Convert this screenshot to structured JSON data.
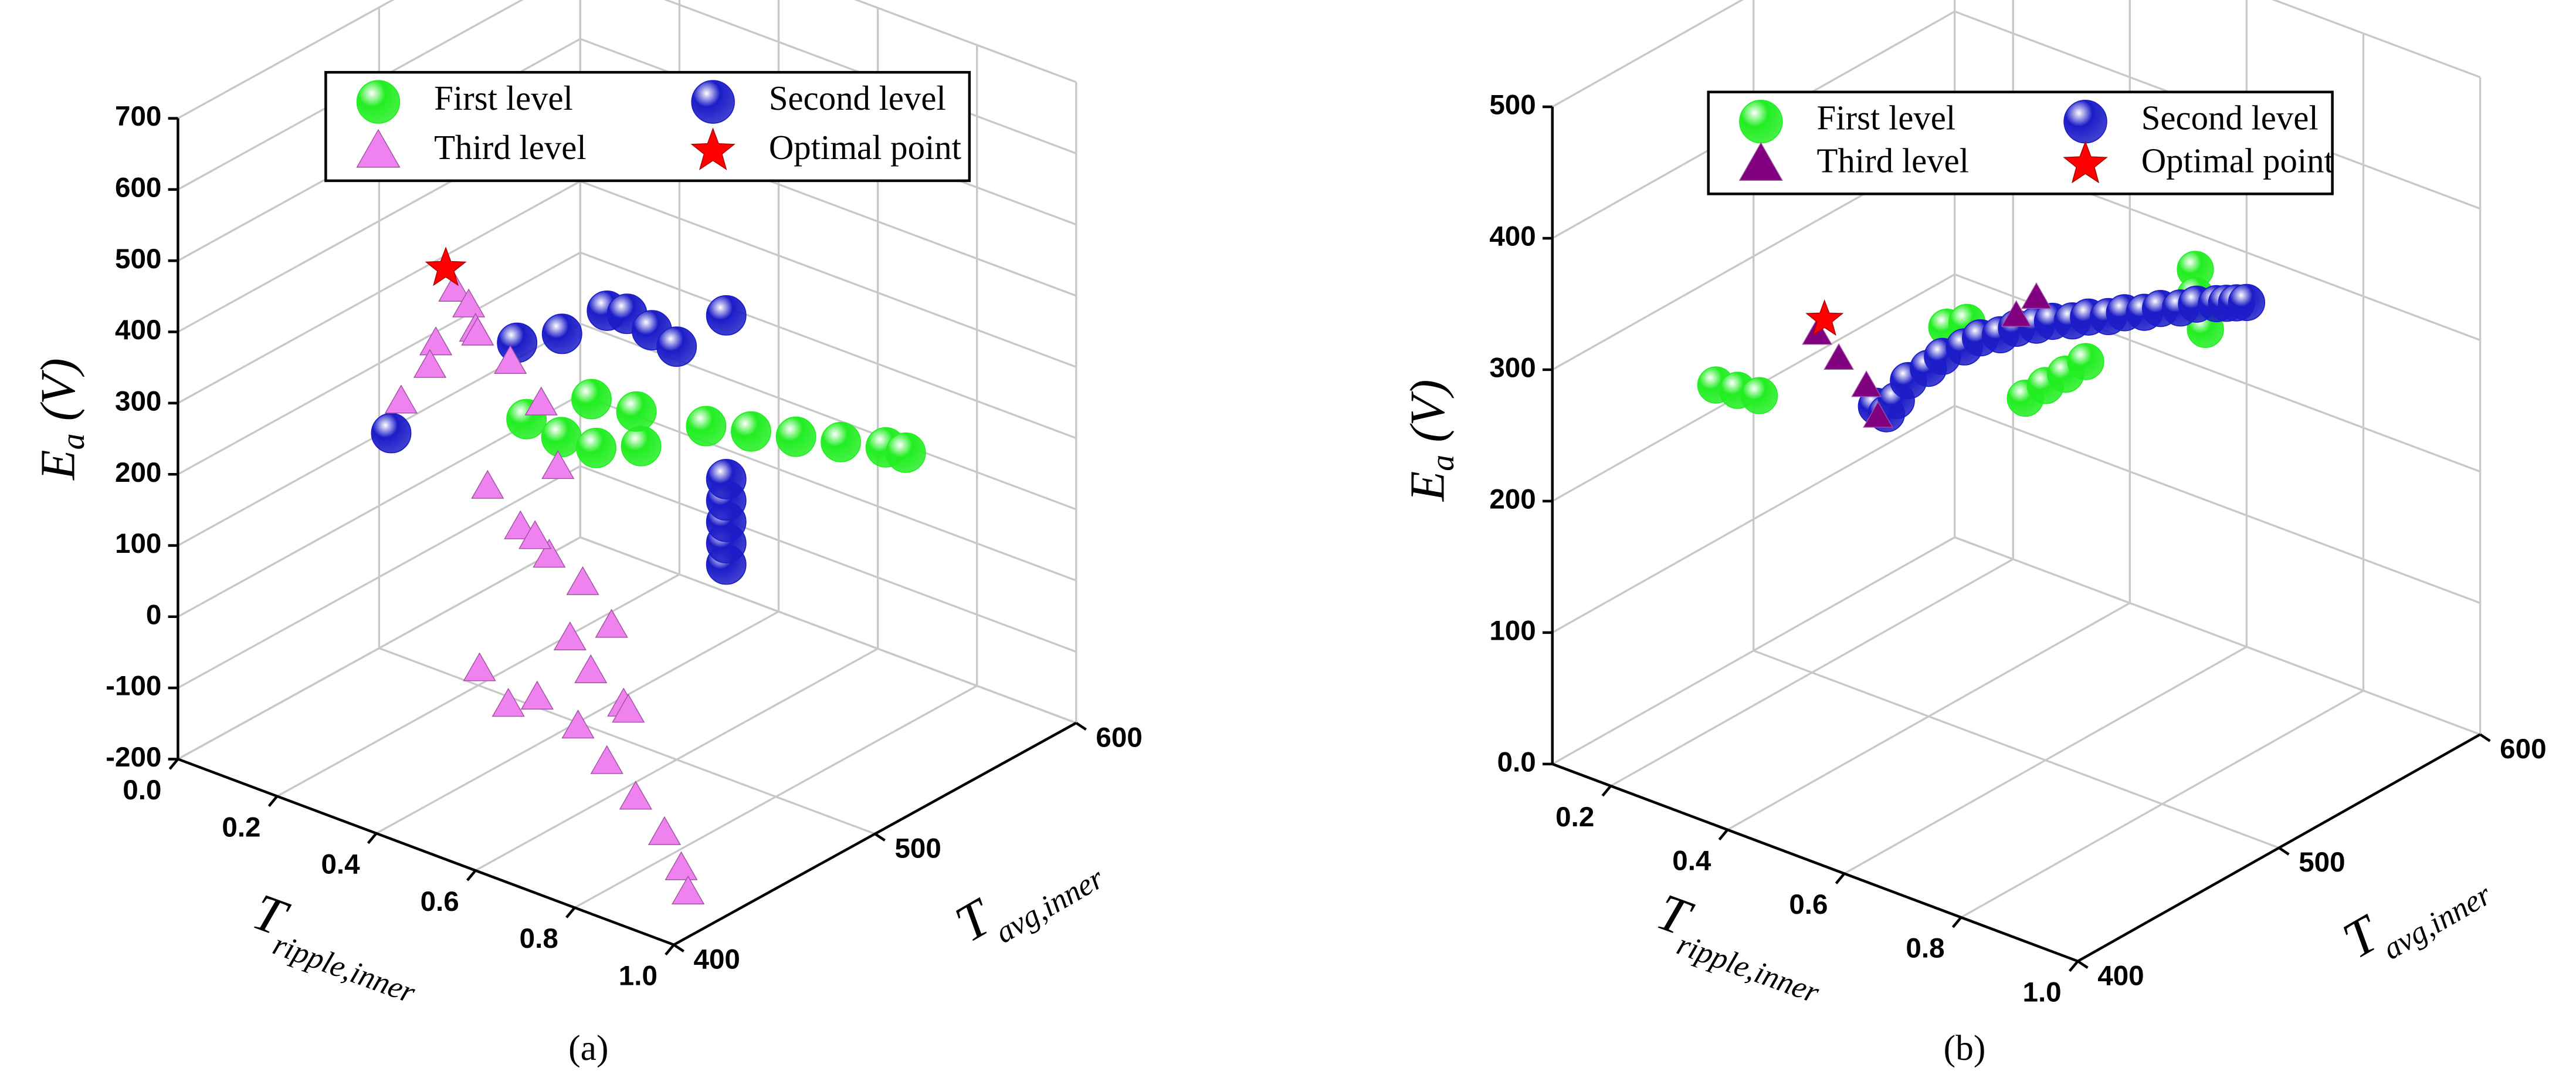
{
  "chart_data": [
    {
      "type": "scatter3d",
      "caption": "(a)",
      "zlabel": [
        "E",
        "a",
        " (V)"
      ],
      "xlabel": [
        "T",
        "ripple,inner"
      ],
      "ylabel": [
        "T",
        "avg,inner"
      ],
      "xlim": [
        0,
        1
      ],
      "xticks": [
        {
          "value": 0,
          "label": "0.0"
        },
        0.2,
        0.4,
        0.6,
        0.8,
        {
          "value": 1,
          "label": "1.0"
        }
      ],
      "ylim": [
        400,
        600
      ],
      "yticks": [
        400,
        500,
        600
      ],
      "zlim": [
        -200,
        700
      ],
      "zticks": [
        -200,
        -100,
        0,
        100,
        200,
        300,
        400,
        500,
        600,
        700
      ],
      "grid": true,
      "series": [
        {
          "name": "First level",
          "color": "#22ee22",
          "marker": "sphere",
          "x": [
            0.5,
            0.55,
            0.6,
            0.65,
            0.6,
            0.7,
            0.75,
            0.8,
            0.85,
            0.9,
            0.92,
            0.55
          ],
          "y": [
            450,
            455,
            460,
            470,
            480,
            490,
            500,
            510,
            520,
            530,
            535,
            470
          ],
          "z": [
            330,
            310,
            300,
            300,
            320,
            310,
            300,
            290,
            280,
            270,
            260,
            340
          ]
        },
        {
          "name": "Second level",
          "color": "#1c1cc8",
          "marker": "sphere",
          "x": [
            0.43,
            0.4,
            0.45,
            0.5,
            0.5,
            0.55,
            0.6,
            0.7,
            0.7,
            0.7,
            0.7,
            0.7,
            0.7
          ],
          "y": [
            400,
            470,
            480,
            490,
            500,
            500,
            500,
            500,
            500,
            500,
            500,
            500,
            500
          ],
          "z": [
            370,
            380,
            390,
            420,
            400,
            390,
            380,
            450,
            100,
            130,
            160,
            190,
            220
          ]
        },
        {
          "name": "Third level",
          "color": "#ee82ee",
          "marker": "triangle",
          "x": [
            0.55,
            0.57,
            0.6,
            0.58,
            0.52,
            0.5,
            0.45,
            0.65,
            0.7,
            0.75,
            0.6,
            0.65,
            0.7,
            0.72,
            0.8,
            0.85,
            0.75,
            0.8,
            0.85,
            0.9,
            0.7,
            0.75,
            0.8,
            0.85,
            0.9,
            0.95,
            0.98,
            0.65,
            0.6
          ],
          "y": [
            402,
            404,
            400,
            406,
            400,
            402,
            400,
            405,
            408,
            404,
            406,
            410,
            412,
            400,
            404,
            406,
            410,
            408,
            412,
            402,
            406,
            414,
            416,
            418,
            420,
            416,
            412,
            404,
            402
          ],
          "z": [
            600,
            580,
            560,
            540,
            520,
            480,
            420,
            520,
            470,
            400,
            330,
            280,
            250,
            300,
            250,
            200,
            150,
            120,
            80,
            100,
            60,
            20,
            -20,
            -60,
            -100,
            -130,
            -150,
            40,
            80
          ]
        },
        {
          "name": "Optimal point",
          "color": "#ff0000",
          "marker": "star",
          "x": [
            0.54
          ],
          "y": [
            400
          ],
          "z": [
            630
          ]
        }
      ]
    },
    {
      "type": "scatter3d",
      "caption": "(b)",
      "zlabel": [
        "E",
        "a",
        " (V)"
      ],
      "xlabel": [
        "T",
        "ripple,inner"
      ],
      "ylabel": [
        "T",
        "avg,inner"
      ],
      "xlim": [
        0.1,
        1
      ],
      "xticks": [
        0.2,
        0.4,
        0.6,
        0.8,
        {
          "value": 1,
          "label": "1.0"
        }
      ],
      "ylim": [
        400,
        600
      ],
      "yticks": [
        400,
        500,
        600
      ],
      "zlim": [
        0,
        500
      ],
      "zticks": [
        {
          "value": 0,
          "label": "0.0"
        },
        100,
        200,
        300,
        400,
        500
      ],
      "grid": true,
      "series": [
        {
          "name": "First level",
          "color": "#22ee22",
          "marker": "sphere",
          "x": [
            0.38,
            0.4,
            0.42,
            0.5,
            0.5,
            0.6,
            0.6,
            0.6,
            0.6,
            0.65,
            0.65,
            0.65
          ],
          "y": [
            400,
            405,
            410,
            480,
            490,
            490,
            500,
            510,
            520,
            560,
            560,
            565
          ],
          "z": [
            335,
            330,
            325,
            330,
            325,
            284,
            285,
            285,
            286,
            330,
            310,
            280
          ]
        },
        {
          "name": "Second level",
          "color": "#1c1cc8",
          "marker": "sphere",
          "x": [
            0.5,
            0.5,
            0.51,
            0.51,
            0.52,
            0.52,
            0.53,
            0.53,
            0.54,
            0.54,
            0.55,
            0.55,
            0.56,
            0.56,
            0.57,
            0.57,
            0.58,
            0.58,
            0.59,
            0.59,
            0.6,
            0.6,
            0.6,
            0.6
          ],
          "y": [
            445,
            450,
            452,
            458,
            465,
            472,
            480,
            488,
            495,
            503,
            510,
            518,
            525,
            533,
            540,
            548,
            555,
            563,
            570,
            578,
            585,
            590,
            595,
            600
          ],
          "z": [
            300,
            290,
            300,
            310,
            315,
            318,
            320,
            320,
            318,
            316,
            314,
            310,
            306,
            302,
            298,
            294,
            290,
            286,
            282,
            278,
            274,
            270,
            266,
            262
          ]
        },
        {
          "name": "Third level",
          "color": "#800080",
          "marker": "triangle",
          "x": [
            0.45,
            0.47,
            0.5,
            0.52,
            0.55,
            0.55
          ],
          "y": [
            430,
            435,
            440,
            440,
            500,
            510
          ],
          "z": [
            360,
            340,
            320,
            300,
            330,
            335
          ]
        },
        {
          "name": "Optimal point",
          "color": "#ff0000",
          "marker": "star",
          "x": [
            0.48
          ],
          "y": [
            425
          ],
          "z": [
            380
          ]
        }
      ]
    }
  ]
}
